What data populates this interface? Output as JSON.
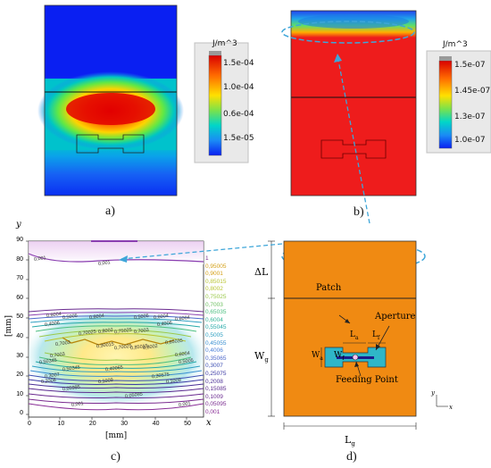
{
  "panels": {
    "a": {
      "label": "a)"
    },
    "b": {
      "label": "b)"
    },
    "c": {
      "label": "c)"
    },
    "d": {
      "label": "d)"
    }
  },
  "colorbar_a": {
    "unit": "J/m^3",
    "ticks": [
      "1.5e-04",
      "1.0e-04",
      "0.6e-04",
      "1.5e-05"
    ]
  },
  "colorbar_b": {
    "unit": "J/m^3",
    "ticks": [
      "1.5e-07",
      "1.45e-07",
      "1.3e-07",
      "1.0e-07"
    ]
  },
  "contour_plot": {
    "y_axis_letter": "y",
    "x_axis_letter": "x",
    "y_label": "[mm]",
    "x_label": "[mm]",
    "y_ticks": [
      "90",
      "80",
      "70",
      "60",
      "50",
      "40",
      "30",
      "20",
      "10",
      "0"
    ],
    "x_ticks": [
      "0",
      "10",
      "20",
      "30",
      "40",
      "50"
    ],
    "legend_levels": [
      "1",
      "0,95005",
      "0,9001",
      "0,85015",
      "0,8002",
      "0,75025",
      "0,7003",
      "0,65035",
      "0,6004",
      "0,55045",
      "0,5005",
      "0,45055",
      "0,4006",
      "0,35065",
      "0,3007",
      "0,25075",
      "0,2008",
      "0,15085",
      "0,1009",
      "0,05095",
      "0,001"
    ],
    "legend_colors": [
      "#7a2b8f",
      "#d4a017",
      "#d4a017",
      "#b9c532",
      "#b9c532",
      "#9bc94a",
      "#6fc163",
      "#4dbf80",
      "#35b69a",
      "#26a9a8",
      "#2fa0c2",
      "#3a8fd0",
      "#4a7fd8",
      "#4b66c9",
      "#3d4fb3",
      "#3c3aa5",
      "#4a2e96",
      "#5b2a8f",
      "#6a2a8f",
      "#7a2b8f",
      "#8a2f97"
    ],
    "contour_labels": [
      "0,001",
      "0,001",
      "0,6004",
      "0,5005",
      "0,6004",
      "0,5005",
      "0,6004",
      "0,6004",
      "0,4006",
      "0,4006",
      "0,70025",
      "0,8002",
      "0,75025",
      "0,7003",
      "0,7003",
      "0,65035",
      "0,90015",
      "0,70025",
      "0,85015",
      "0,8002",
      "0,7003",
      "0,6004",
      "0,50345",
      "0,5005",
      "0,50345",
      "0,40065",
      "0,3007",
      "0,30575",
      "0,2008",
      "0,1009",
      "0,1009",
      "0,05995",
      "0,05095",
      "0,001",
      "0,001"
    ]
  },
  "antenna": {
    "delta_l": "ΔL",
    "patch": "Patch",
    "aperture": "Aperture",
    "wg": "W",
    "wg_sub": "g",
    "lg": "L",
    "lg_sub": "g",
    "la": "L",
    "la_sub": "a",
    "lf": "L",
    "lf_sub": "f",
    "wa": "W",
    "wa_sub": "a",
    "wf": "W",
    "wf_sub": "f",
    "feeding_point": "Feeding Point",
    "axis_y": "y",
    "axis_x": "x"
  },
  "colors": {
    "orange": "#f08a12",
    "blue_field": "#0a24f2",
    "red_field": "#ee1c1c",
    "dashed_cyan": "#3ea6d9"
  }
}
